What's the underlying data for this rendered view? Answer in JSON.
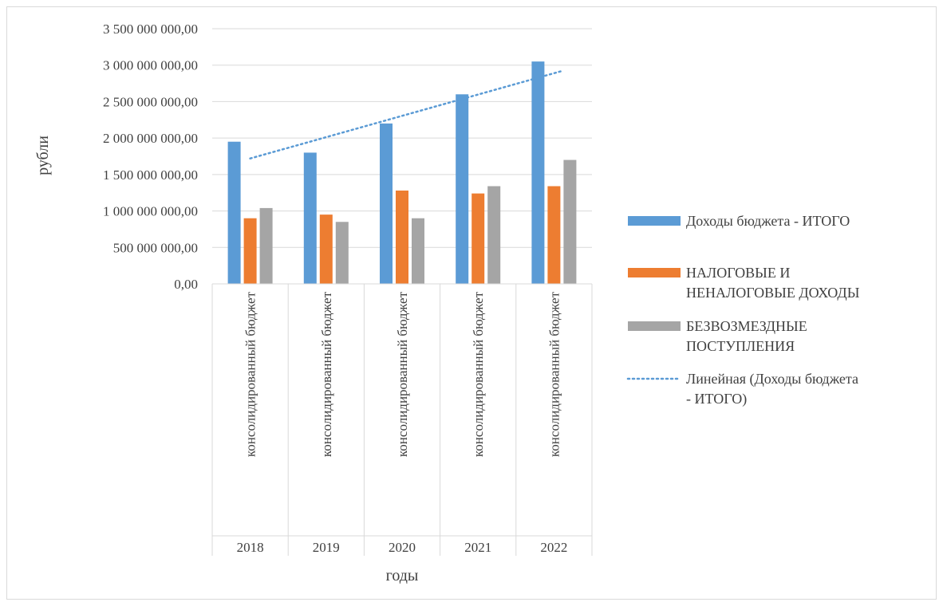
{
  "chart_data": {
    "type": "bar",
    "title": "",
    "xlabel": "годы",
    "ylabel": "рубли",
    "ylim": [
      0,
      3500000000
    ],
    "y_ticks": [
      0,
      500000000,
      1000000000,
      1500000000,
      2000000000,
      2500000000,
      3000000000,
      3500000000
    ],
    "y_tick_labels": [
      "0,00",
      "500 000 000,00",
      "1 000 000 000,00",
      "1 500 000 000,00",
      "2 000 000 000,00",
      "2 500 000 000,00",
      "3 000 000 000,00",
      "3 500 000 000,00"
    ],
    "categories": [
      "2018",
      "2019",
      "2020",
      "2021",
      "2022"
    ],
    "subcategory_label": "консолидированный бюджет",
    "series": [
      {
        "name": "Доходы бюджета - ИТОГО",
        "color": "#5b9bd5",
        "values": [
          1950000000,
          1800000000,
          2200000000,
          2600000000,
          3050000000
        ]
      },
      {
        "name": "НАЛОГОВЫЕ И НЕНАЛОГОВЫЕ ДОХОДЫ",
        "color": "#ed7d31",
        "values": [
          900000000,
          950000000,
          1280000000,
          1240000000,
          1340000000
        ]
      },
      {
        "name": "БЕЗВОЗМЕЗДНЫЕ ПОСТУПЛЕНИЯ",
        "color": "#a5a5a5",
        "values": [
          1040000000,
          850000000,
          900000000,
          1340000000,
          1700000000
        ]
      }
    ],
    "trendline": {
      "name": "Линейная (Доходы бюджета - ИТОГО)",
      "legend_lines": [
        "Линейная (Доходы бюджета",
        "- ИТОГО)"
      ],
      "color": "#5b9bd5",
      "style": "dotted",
      "of_series": 0
    },
    "legend": {
      "position": "right",
      "entries": [
        {
          "lines": [
            "Доходы бюджета - ИТОГО"
          ]
        },
        {
          "lines": [
            "НАЛОГОВЫЕ И",
            "НЕНАЛОГОВЫЕ ДОХОДЫ"
          ]
        },
        {
          "lines": [
            "БЕЗВОЗМЕЗДНЫЕ",
            "ПОСТУПЛЕНИЯ"
          ]
        }
      ]
    },
    "grid": true
  }
}
